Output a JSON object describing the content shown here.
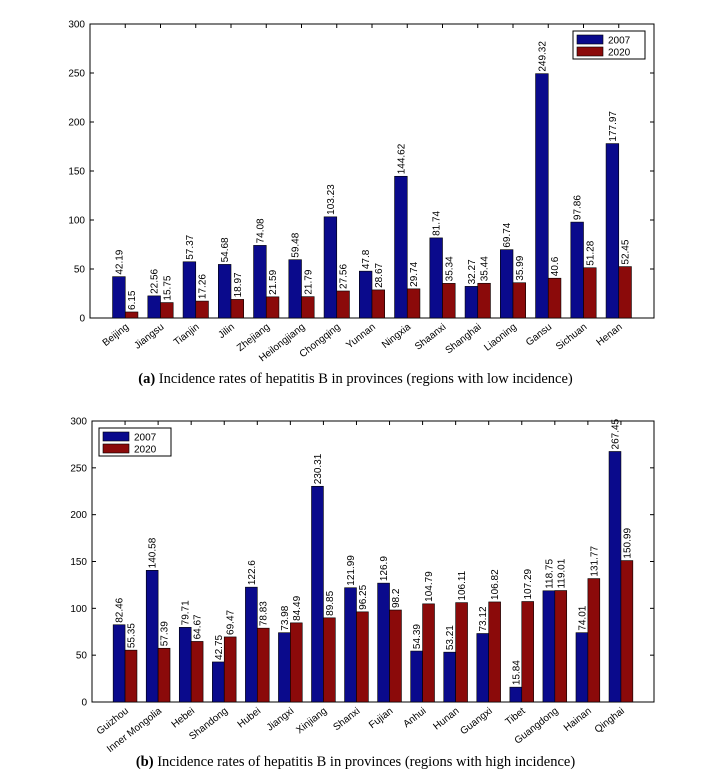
{
  "chart_data": [
    {
      "type": "bar",
      "caption_tag": "(a)",
      "title": "Incidence rates of hepatitis B in provinces (regions with low incidence)",
      "categories": [
        "Beijing",
        "Jiangsu",
        "Tianjin",
        "Jilin",
        "Zhejiang",
        "Heilongjiang",
        "Chongqing",
        "Yunnan",
        "Ningxia",
        "Shaanxi",
        "Shanghai",
        "Liaoning",
        "Gansu",
        "Sichuan",
        "Henan"
      ],
      "series": [
        {
          "name": "2007",
          "color": "#0a0a8c",
          "values": [
            42.19,
            22.56,
            57.37,
            54.68,
            74.08,
            59.48,
            103.23,
            47.8,
            144.62,
            81.74,
            32.27,
            69.74,
            249.32,
            97.86,
            177.97
          ],
          "labels": [
            "42.19",
            "22.56",
            "57.37",
            "54.68",
            "74.08",
            "59.48",
            "103.23",
            "47.8",
            "144.62",
            "81.74",
            "32.27",
            "69.74",
            "249.32",
            "97.86",
            "177.97"
          ]
        },
        {
          "name": "2020",
          "color": "#8b0a0a",
          "values": [
            6.15,
            15.75,
            17.26,
            18.97,
            21.59,
            21.79,
            27.56,
            28.67,
            29.74,
            35.34,
            35.44,
            35.99,
            40.6,
            51.28,
            52.45
          ],
          "labels": [
            "6.15",
            "15.75",
            "17.26",
            "18.97",
            "21.59",
            "21.79",
            "27.56",
            "28.67",
            "29.74",
            "35.34",
            "35.44",
            "35.99",
            "40.6",
            "51.28",
            "52.45"
          ]
        }
      ],
      "yticks": [
        0,
        50,
        100,
        150,
        200,
        250,
        300
      ],
      "ylim": [
        0,
        300
      ],
      "xlabel": "",
      "ylabel": "",
      "legend_position": "top-right"
    },
    {
      "type": "bar",
      "caption_tag": "(b)",
      "title": "Incidence rates of hepatitis B in provinces (regions with high incidence)",
      "categories": [
        "Guizhou",
        "Inner Mongolia",
        "Hebei",
        "Shandong",
        "Hubei",
        "Jiangxi",
        "Xinjiang",
        "Shanxi",
        "Fujian",
        "Anhui",
        "Hunan",
        "Guangxi",
        "Tibet",
        "Guangdong",
        "Hainan",
        "Qinghai"
      ],
      "series": [
        {
          "name": "2007",
          "color": "#0a0a8c",
          "values": [
            82.46,
            140.58,
            79.71,
            42.75,
            122.6,
            73.98,
            230.31,
            121.99,
            126.9,
            54.39,
            53.21,
            73.12,
            15.84,
            118.75,
            74.01,
            267.45
          ],
          "labels": [
            "82.46",
            "140.58",
            "79.71",
            "42.75",
            "122.6",
            "73.98",
            "230.31",
            "121.99",
            "126.9",
            "54.39",
            "53.21",
            "73.12",
            "15.84",
            "118.75",
            "74.01",
            "267.45"
          ]
        },
        {
          "name": "2020",
          "color": "#8b0a0a",
          "values": [
            55.35,
            57.39,
            64.67,
            69.47,
            78.83,
            84.49,
            89.85,
            96.25,
            98.2,
            104.79,
            106.11,
            106.82,
            107.29,
            119.01,
            131.77,
            150.99
          ],
          "labels": [
            "55.35",
            "57.39",
            "64.67",
            "69.47",
            "78.83",
            "84.49",
            "89.85",
            "96.25",
            "98.2",
            "104.79",
            "106.11",
            "106.82",
            "107.29",
            "119.01",
            "131.77",
            "150.99"
          ]
        }
      ],
      "yticks": [
        0,
        50,
        100,
        150,
        200,
        250,
        300
      ],
      "ylim": [
        0,
        300
      ],
      "xlabel": "",
      "ylabel": "",
      "legend_position": "top-left"
    }
  ]
}
